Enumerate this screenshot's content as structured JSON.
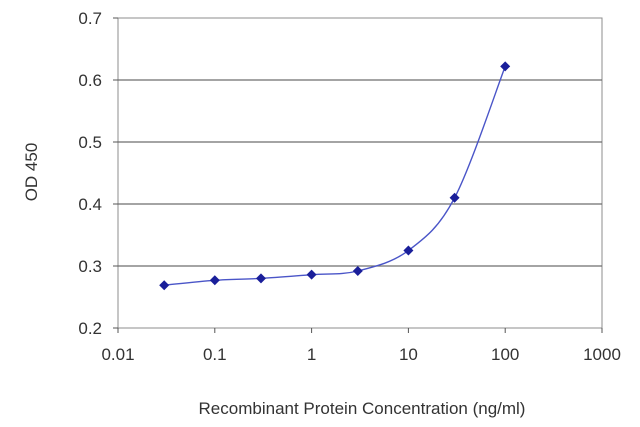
{
  "chart_data": {
    "type": "scatter",
    "title": "",
    "xlabel": "Recombinant Protein Concentration (ng/ml)",
    "ylabel": "OD 450",
    "xscale": "log",
    "xlim": [
      0.01,
      1000
    ],
    "ylim": [
      0.2,
      0.7
    ],
    "xticks": [
      0.01,
      0.1,
      1,
      10,
      100,
      1000
    ],
    "xtick_labels": [
      "0.01",
      "0.1",
      "1",
      "10",
      "100",
      "1000"
    ],
    "yticks": [
      0.2,
      0.3,
      0.4,
      0.5,
      0.6,
      0.7
    ],
    "ytick_labels": [
      "0.2",
      "0.3",
      "0.4",
      "0.5",
      "0.6",
      "0.7"
    ],
    "grid": "horizontal",
    "legend": "none",
    "series": [
      {
        "x": [
          0.03,
          0.1,
          0.3,
          1,
          3,
          10,
          30,
          100
        ],
        "y": [
          0.269,
          0.277,
          0.28,
          0.286,
          0.292,
          0.325,
          0.41,
          0.622
        ],
        "marker": "diamond",
        "fitted_curve": true,
        "color": "#1a1f9a"
      }
    ],
    "colors": {
      "series": "#1a1f9a",
      "grid": "#6e6e6e",
      "axis": "#555555"
    }
  }
}
